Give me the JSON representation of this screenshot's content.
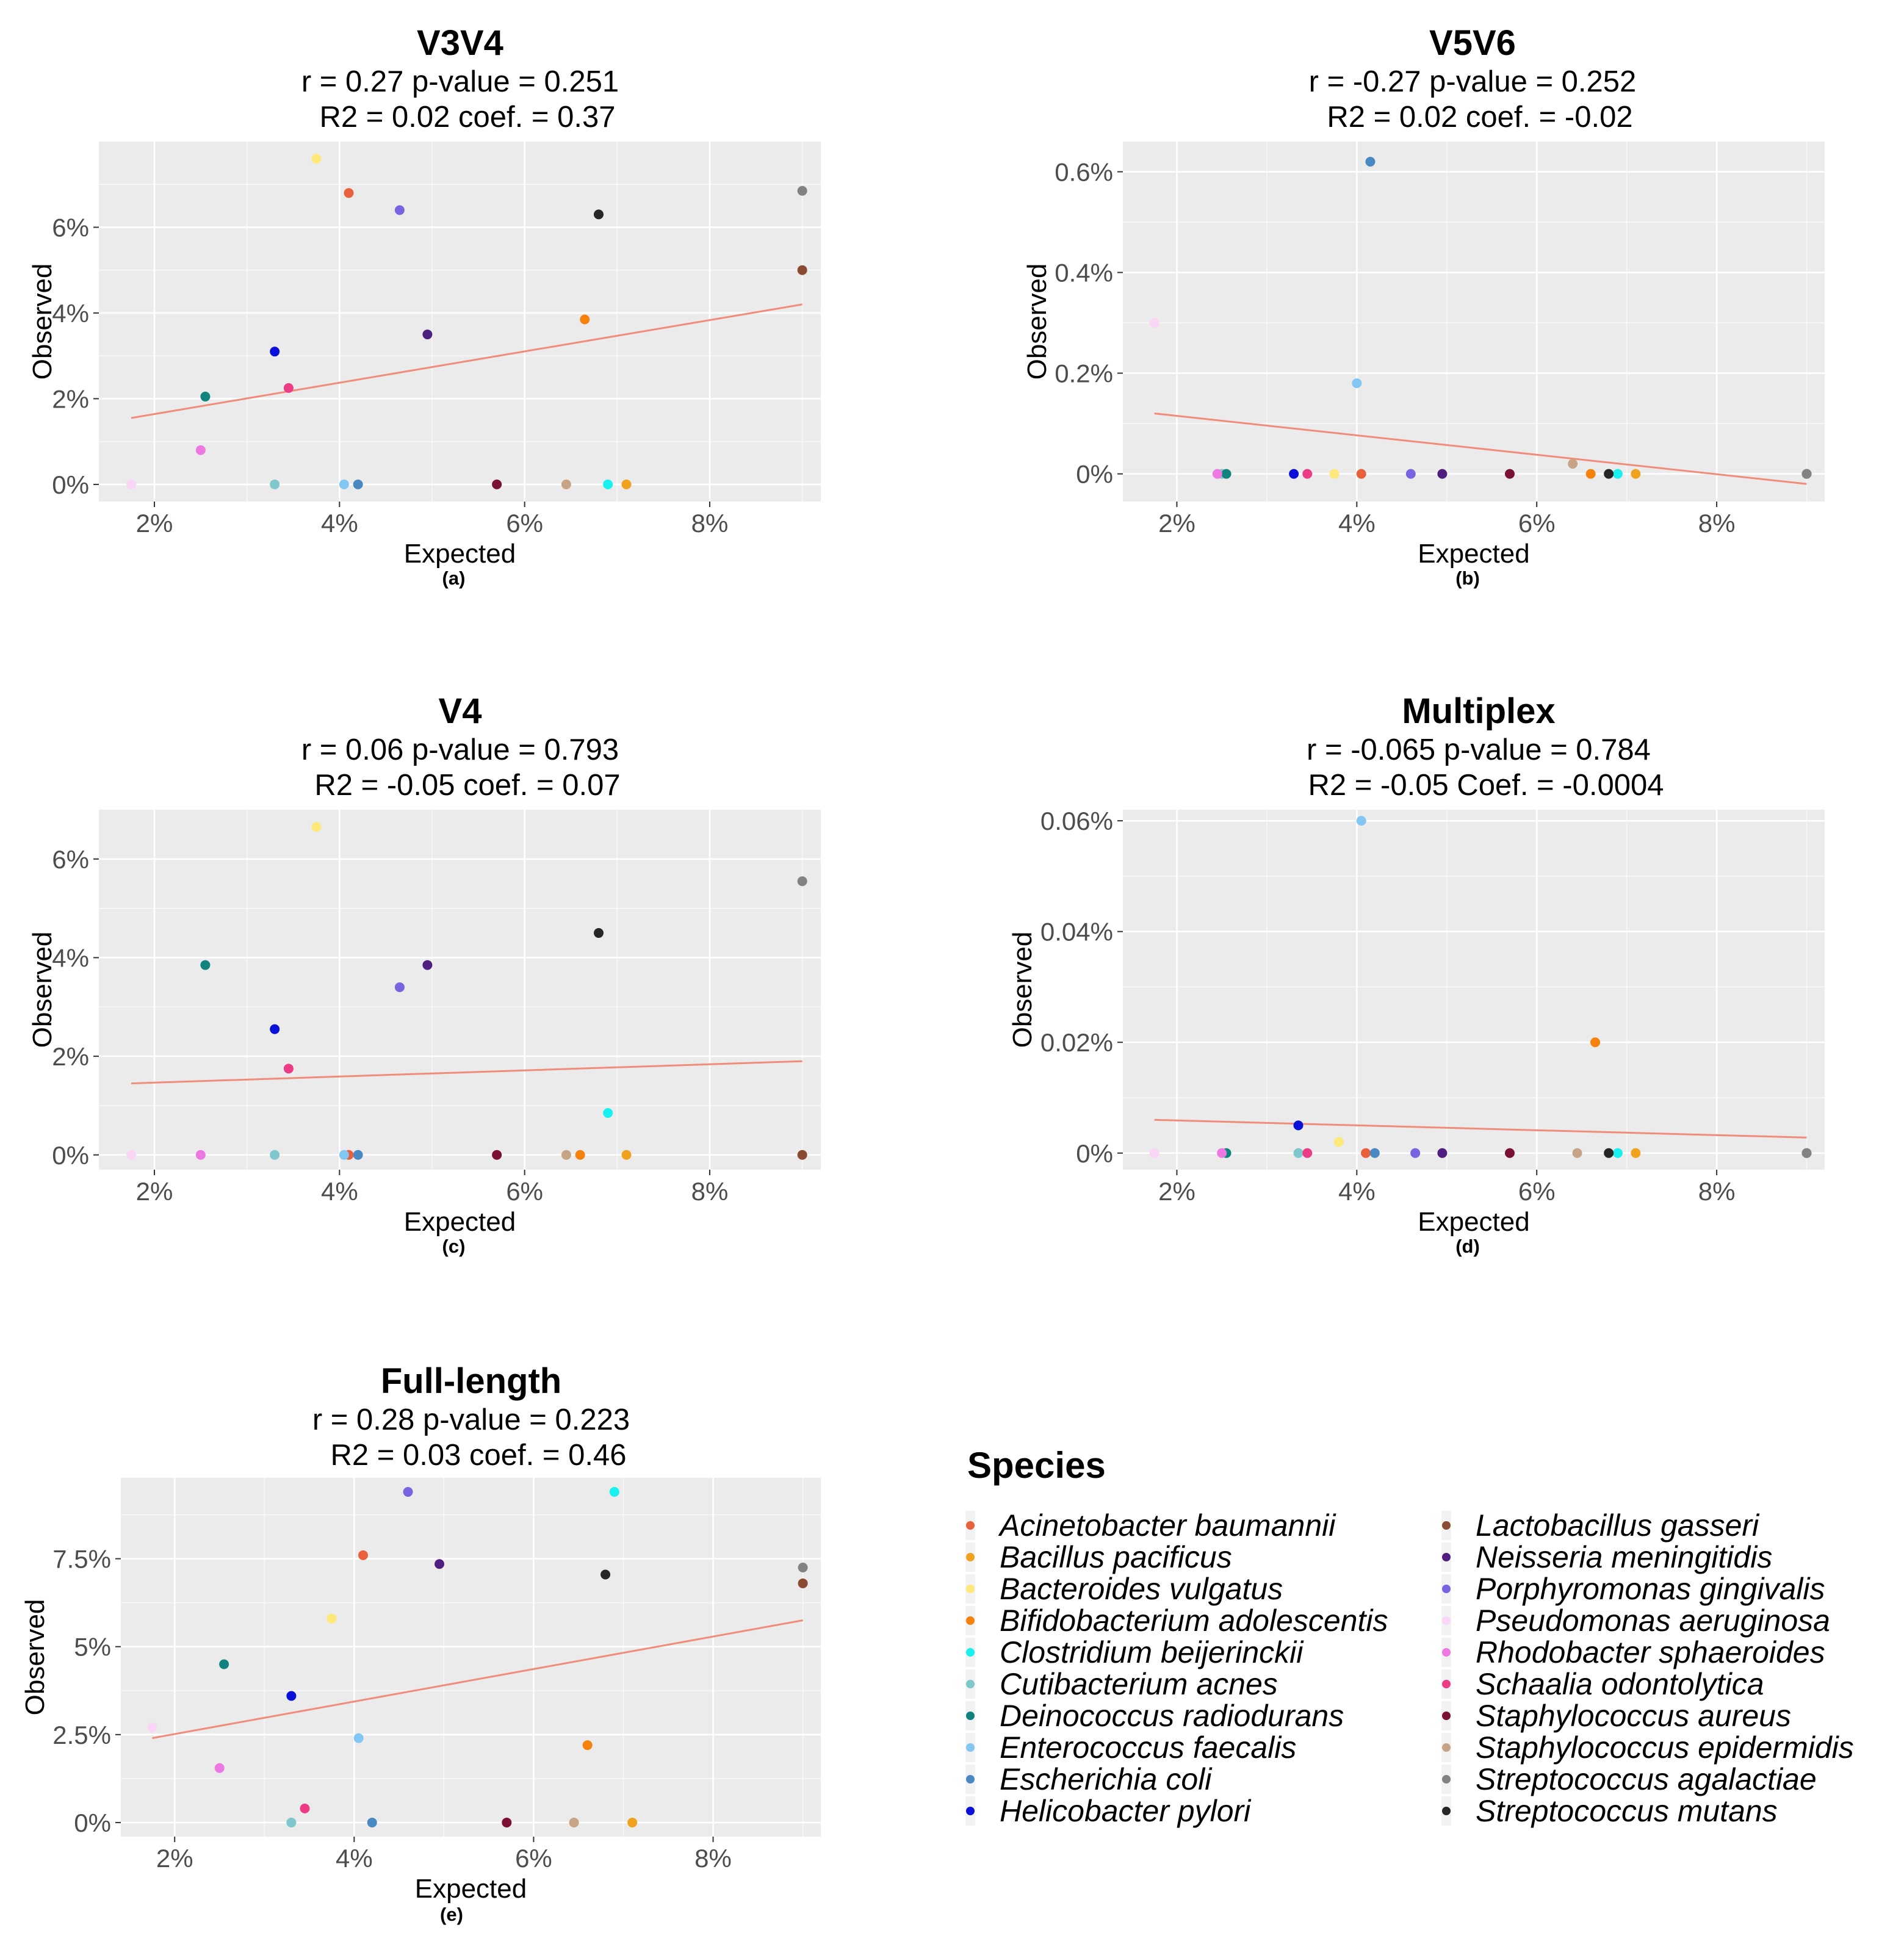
{
  "chart_data": [
    {
      "type": "scatter",
      "panel_label": "(a)",
      "title": "V3V4",
      "stats_line1": "r = 0.27  p-value = 0.251",
      "stats_line2": "R2 = 0.02  coef. = 0.37",
      "xlabel": "Expected",
      "ylabel": "Observed",
      "xlim": [
        1.4,
        9.2
      ],
      "ylim": [
        -0.4,
        8.0
      ],
      "xticks": [
        2,
        4,
        6,
        8
      ],
      "xtick_labels": [
        "2%",
        "4%",
        "6%",
        "8%"
      ],
      "yticks": [
        0,
        2,
        4,
        6
      ],
      "ytick_labels": [
        "0%",
        "2%",
        "4%",
        "6%"
      ],
      "fit_line": {
        "x": [
          1.75,
          9.0
        ],
        "y": [
          1.55,
          4.2
        ]
      },
      "points": [
        {
          "species": "Acinetobacter baumannii",
          "x": 4.1,
          "y": 6.8
        },
        {
          "species": "Bacillus pacificus",
          "x": 7.1,
          "y": 0.0
        },
        {
          "species": "Bacteroides vulgatus",
          "x": 3.75,
          "y": 7.6
        },
        {
          "species": "Bifidobacterium adolescentis",
          "x": 6.65,
          "y": 3.85
        },
        {
          "species": "Clostridium beijerinckii",
          "x": 6.9,
          "y": 0.0
        },
        {
          "species": "Cutibacterium acnes",
          "x": 3.3,
          "y": 0.0
        },
        {
          "species": "Deinococcus radiodurans",
          "x": 2.55,
          "y": 2.05
        },
        {
          "species": "Enterococcus faecalis",
          "x": 4.05,
          "y": 0.0
        },
        {
          "species": "Escherichia coli",
          "x": 4.2,
          "y": 0.0
        },
        {
          "species": "Helicobacter pylori",
          "x": 3.3,
          "y": 3.1
        },
        {
          "species": "Lactobacillus gasseri",
          "x": 9.0,
          "y": 5.0
        },
        {
          "species": "Neisseria meningitidis",
          "x": 4.95,
          "y": 3.5
        },
        {
          "species": "Porphyromonas gingivalis",
          "x": 4.65,
          "y": 6.4
        },
        {
          "species": "Pseudomonas aeruginosa",
          "x": 1.75,
          "y": 0.0
        },
        {
          "species": "Rhodobacter sphaeroides",
          "x": 2.5,
          "y": 0.8
        },
        {
          "species": "Schaalia odontolytica",
          "x": 3.45,
          "y": 2.25
        },
        {
          "species": "Staphylococcus aureus",
          "x": 5.7,
          "y": 0.0
        },
        {
          "species": "Staphylococcus epidermidis",
          "x": 6.45,
          "y": 0.0
        },
        {
          "species": "Streptococcus agalactiae",
          "x": 9.0,
          "y": 6.85
        },
        {
          "species": "Streptococcus mutans",
          "x": 6.8,
          "y": 6.3
        }
      ]
    },
    {
      "type": "scatter",
      "panel_label": "(b)",
      "title": "V5V6",
      "stats_line1": "r = -0.27  p-value = 0.252",
      "stats_line2": "R2 = 0.02  coef. = -0.02",
      "xlabel": "Expected",
      "ylabel": "Observed",
      "xlim": [
        1.4,
        9.2
      ],
      "ylim": [
        -0.055,
        0.66
      ],
      "xticks": [
        2,
        4,
        6,
        8
      ],
      "xtick_labels": [
        "2%",
        "4%",
        "6%",
        "8%"
      ],
      "yticks": [
        0,
        0.2,
        0.4,
        0.6
      ],
      "ytick_labels": [
        "0%",
        "0.2%",
        "0.4%",
        "0.6%"
      ],
      "fit_line": {
        "x": [
          1.75,
          9.0
        ],
        "y": [
          0.12,
          -0.02
        ]
      },
      "points": [
        {
          "species": "Acinetobacter baumannii",
          "x": 4.05,
          "y": 0.0
        },
        {
          "species": "Bacillus pacificus",
          "x": 7.1,
          "y": 0.0
        },
        {
          "species": "Bacteroides vulgatus",
          "x": 3.75,
          "y": 0.0
        },
        {
          "species": "Bifidobacterium adolescentis",
          "x": 6.6,
          "y": 0.0
        },
        {
          "species": "Clostridium beijerinckii",
          "x": 6.9,
          "y": 0.0
        },
        {
          "species": "Cutibacterium acnes",
          "x": 2.5,
          "y": 0.0
        },
        {
          "species": "Deinococcus radiodurans",
          "x": 2.55,
          "y": 0.0
        },
        {
          "species": "Enterococcus faecalis",
          "x": 4.0,
          "y": 0.18
        },
        {
          "species": "Escherichia coli",
          "x": 4.15,
          "y": 0.62
        },
        {
          "species": "Helicobacter pylori",
          "x": 3.3,
          "y": 0.0
        },
        {
          "species": "Lactobacillus gasseri",
          "x": 9.0,
          "y": 0.0
        },
        {
          "species": "Neisseria meningitidis",
          "x": 4.95,
          "y": 0.0
        },
        {
          "species": "Porphyromonas gingivalis",
          "x": 4.6,
          "y": 0.0
        },
        {
          "species": "Pseudomonas aeruginosa",
          "x": 1.75,
          "y": 0.3
        },
        {
          "species": "Rhodobacter sphaeroides",
          "x": 2.45,
          "y": 0.0
        },
        {
          "species": "Schaalia odontolytica",
          "x": 3.45,
          "y": 0.0
        },
        {
          "species": "Staphylococcus aureus",
          "x": 5.7,
          "y": 0.0
        },
        {
          "species": "Staphylococcus epidermidis",
          "x": 6.4,
          "y": 0.02
        },
        {
          "species": "Streptococcus agalactiae",
          "x": 9.0,
          "y": 0.0
        },
        {
          "species": "Streptococcus mutans",
          "x": 6.8,
          "y": 0.0
        }
      ]
    },
    {
      "type": "scatter",
      "panel_label": "(c)",
      "title": "V4",
      "stats_line1": "r = 0.06 p-value = 0.793",
      "stats_line2": "R2 = -0.05  coef. = 0.07",
      "xlabel": "Expected",
      "ylabel": "Observed",
      "xlim": [
        1.4,
        9.2
      ],
      "ylim": [
        -0.3,
        7.0
      ],
      "xticks": [
        2,
        4,
        6,
        8
      ],
      "xtick_labels": [
        "2%",
        "4%",
        "6%",
        "8%"
      ],
      "yticks": [
        0,
        2,
        4,
        6
      ],
      "ytick_labels": [
        "0%",
        "2%",
        "4%",
        "6%"
      ],
      "fit_line": {
        "x": [
          1.75,
          9.0
        ],
        "y": [
          1.45,
          1.9
        ]
      },
      "points": [
        {
          "species": "Acinetobacter baumannii",
          "x": 4.1,
          "y": 0.0
        },
        {
          "species": "Bacillus pacificus",
          "x": 7.1,
          "y": 0.0
        },
        {
          "species": "Bacteroides vulgatus",
          "x": 3.75,
          "y": 6.65
        },
        {
          "species": "Bifidobacterium adolescentis",
          "x": 6.6,
          "y": 0.0
        },
        {
          "species": "Clostridium beijerinckii",
          "x": 6.9,
          "y": 0.85
        },
        {
          "species": "Cutibacterium acnes",
          "x": 3.3,
          "y": 0.0
        },
        {
          "species": "Deinococcus radiodurans",
          "x": 2.55,
          "y": 3.85
        },
        {
          "species": "Enterococcus faecalis",
          "x": 4.05,
          "y": 0.0
        },
        {
          "species": "Escherichia coli",
          "x": 4.2,
          "y": 0.0
        },
        {
          "species": "Helicobacter pylori",
          "x": 3.3,
          "y": 2.55
        },
        {
          "species": "Lactobacillus gasseri",
          "x": 9.0,
          "y": 0.0
        },
        {
          "species": "Neisseria meningitidis",
          "x": 4.95,
          "y": 3.85
        },
        {
          "species": "Porphyromonas gingivalis",
          "x": 4.65,
          "y": 3.4
        },
        {
          "species": "Pseudomonas aeruginosa",
          "x": 1.75,
          "y": 0.0
        },
        {
          "species": "Rhodobacter sphaeroides",
          "x": 2.5,
          "y": 0.0
        },
        {
          "species": "Schaalia odontolytica",
          "x": 3.45,
          "y": 1.75
        },
        {
          "species": "Staphylococcus aureus",
          "x": 5.7,
          "y": 0.0
        },
        {
          "species": "Staphylococcus epidermidis",
          "x": 6.45,
          "y": 0.0
        },
        {
          "species": "Streptococcus agalactiae",
          "x": 9.0,
          "y": 5.55
        },
        {
          "species": "Streptococcus mutans",
          "x": 6.8,
          "y": 4.5
        }
      ]
    },
    {
      "type": "scatter",
      "panel_label": "(d)",
      "title": "Multiplex",
      "stats_line1": "r = -0.065  p-value = 0.784",
      "stats_line2": "R2 = -0.05  Coef. = -0.0004",
      "xlabel": "Expected",
      "ylabel": "Observed",
      "xlim": [
        1.4,
        9.2
      ],
      "ylim": [
        -0.003,
        0.062
      ],
      "xticks": [
        2,
        4,
        6,
        8
      ],
      "xtick_labels": [
        "2%",
        "4%",
        "6%",
        "8%"
      ],
      "yticks": [
        0,
        0.02,
        0.04,
        0.06
      ],
      "ytick_labels": [
        "0%",
        "0.02%",
        "0.04%",
        "0.06%"
      ],
      "fit_line": {
        "x": [
          1.75,
          9.0
        ],
        "y": [
          0.006,
          0.0028
        ]
      },
      "points": [
        {
          "species": "Acinetobacter baumannii",
          "x": 4.1,
          "y": 0.0
        },
        {
          "species": "Bacillus pacificus",
          "x": 7.1,
          "y": 0.0
        },
        {
          "species": "Bacteroides vulgatus",
          "x": 3.8,
          "y": 0.002
        },
        {
          "species": "Bifidobacterium adolescentis",
          "x": 6.65,
          "y": 0.02
        },
        {
          "species": "Clostridium beijerinckii",
          "x": 6.9,
          "y": 0.0
        },
        {
          "species": "Cutibacterium acnes",
          "x": 3.35,
          "y": 0.0
        },
        {
          "species": "Deinococcus radiodurans",
          "x": 2.55,
          "y": 0.0
        },
        {
          "species": "Enterococcus faecalis",
          "x": 4.05,
          "y": 0.06
        },
        {
          "species": "Escherichia coli",
          "x": 4.2,
          "y": 0.0
        },
        {
          "species": "Helicobacter pylori",
          "x": 3.35,
          "y": 0.005
        },
        {
          "species": "Lactobacillus gasseri",
          "x": 9.0,
          "y": 0.0
        },
        {
          "species": "Neisseria meningitidis",
          "x": 4.95,
          "y": 0.0
        },
        {
          "species": "Porphyromonas gingivalis",
          "x": 4.65,
          "y": 0.0
        },
        {
          "species": "Pseudomonas aeruginosa",
          "x": 1.75,
          "y": 0.0
        },
        {
          "species": "Rhodobacter sphaeroides",
          "x": 2.5,
          "y": 0.0
        },
        {
          "species": "Schaalia odontolytica",
          "x": 3.45,
          "y": 0.0
        },
        {
          "species": "Staphylococcus aureus",
          "x": 5.7,
          "y": 0.0
        },
        {
          "species": "Staphylococcus epidermidis",
          "x": 6.45,
          "y": 0.0
        },
        {
          "species": "Streptococcus agalactiae",
          "x": 9.0,
          "y": 0.0
        },
        {
          "species": "Streptococcus mutans",
          "x": 6.8,
          "y": 0.0
        }
      ]
    },
    {
      "type": "scatter",
      "panel_label": "(e)",
      "title": "Full-length",
      "stats_line1": "r = 0.28  p-value = 0.223",
      "stats_line2": "R2 = 0.03  coef. = 0.46",
      "xlabel": "Expected",
      "ylabel": "Observed",
      "xlim": [
        1.4,
        9.2
      ],
      "ylim": [
        -0.4,
        9.8
      ],
      "xticks": [
        2,
        4,
        6,
        8
      ],
      "xtick_labels": [
        "2%",
        "4%",
        "6%",
        "8%"
      ],
      "yticks": [
        0,
        2.5,
        5,
        7.5
      ],
      "ytick_labels": [
        "0%",
        "2.5%",
        "5%",
        "7.5%"
      ],
      "fit_line": {
        "x": [
          1.75,
          9.0
        ],
        "y": [
          2.4,
          5.75
        ]
      },
      "points": [
        {
          "species": "Acinetobacter baumannii",
          "x": 4.1,
          "y": 7.6
        },
        {
          "species": "Bacillus pacificus",
          "x": 7.1,
          "y": 0.0
        },
        {
          "species": "Bacteroides vulgatus",
          "x": 3.75,
          "y": 5.8
        },
        {
          "species": "Bifidobacterium adolescentis",
          "x": 6.6,
          "y": 2.2
        },
        {
          "species": "Clostridium beijerinckii",
          "x": 6.9,
          "y": 9.4
        },
        {
          "species": "Cutibacterium acnes",
          "x": 3.3,
          "y": 0.0
        },
        {
          "species": "Deinococcus radiodurans",
          "x": 2.55,
          "y": 4.5
        },
        {
          "species": "Enterococcus faecalis",
          "x": 4.05,
          "y": 2.4
        },
        {
          "species": "Escherichia coli",
          "x": 4.2,
          "y": 0.0
        },
        {
          "species": "Helicobacter pylori",
          "x": 3.3,
          "y": 3.6
        },
        {
          "species": "Lactobacillus gasseri",
          "x": 9.0,
          "y": 6.8
        },
        {
          "species": "Neisseria meningitidis",
          "x": 4.95,
          "y": 7.35
        },
        {
          "species": "Porphyromonas gingivalis",
          "x": 4.6,
          "y": 9.4
        },
        {
          "species": "Pseudomonas aeruginosa",
          "x": 1.75,
          "y": 2.7
        },
        {
          "species": "Rhodobacter sphaeroides",
          "x": 2.5,
          "y": 1.55
        },
        {
          "species": "Schaalia odontolytica",
          "x": 3.45,
          "y": 0.4
        },
        {
          "species": "Staphylococcus aureus",
          "x": 5.7,
          "y": 0.0
        },
        {
          "species": "Staphylococcus epidermidis",
          "x": 6.45,
          "y": 0.0
        },
        {
          "species": "Streptococcus agalactiae",
          "x": 9.0,
          "y": 7.25
        },
        {
          "species": "Streptococcus mutans",
          "x": 6.8,
          "y": 7.05
        }
      ]
    }
  ],
  "legend": {
    "title": "Species",
    "items": [
      {
        "label": "Acinetobacter baumannii",
        "color": "#E8603C"
      },
      {
        "label": "Bacillus pacificus",
        "color": "#F0A21E"
      },
      {
        "label": "Bacteroides vulgatus",
        "color": "#FCE97A"
      },
      {
        "label": "Bifidobacterium adolescentis",
        "color": "#F5820D"
      },
      {
        "label": "Clostridium beijerinckii",
        "color": "#19F0F0"
      },
      {
        "label": "Cutibacterium acnes",
        "color": "#7FC7CC"
      },
      {
        "label": "Deinococcus radiodurans",
        "color": "#11837F"
      },
      {
        "label": "Enterococcus faecalis",
        "color": "#82C6F3"
      },
      {
        "label": "Escherichia coli",
        "color": "#4A88C2"
      },
      {
        "label": "Helicobacter pylori",
        "color": "#0A10D8"
      },
      {
        "label": "Lactobacillus gasseri",
        "color": "#8B4A32"
      },
      {
        "label": "Neisseria meningitidis",
        "color": "#4F1F7F"
      },
      {
        "label": "Porphyromonas gingivalis",
        "color": "#7A63E0"
      },
      {
        "label": "Pseudomonas aeruginosa",
        "color": "#F9D6F5"
      },
      {
        "label": "Rhodobacter sphaeroides",
        "color": "#EE78E2"
      },
      {
        "label": "Schaalia odontolytica",
        "color": "#EC3C86"
      },
      {
        "label": "Staphylococcus aureus",
        "color": "#7A1034"
      },
      {
        "label": "Staphylococcus epidermidis",
        "color": "#C8A487"
      },
      {
        "label": "Streptococcus agalactiae",
        "color": "#828282"
      },
      {
        "label": "Streptococcus mutans",
        "color": "#262626"
      }
    ]
  },
  "colors": {
    "panel_background": "#EBEBEB",
    "grid_line": "#FFFFFF",
    "fit_line": "#F08C7A"
  }
}
